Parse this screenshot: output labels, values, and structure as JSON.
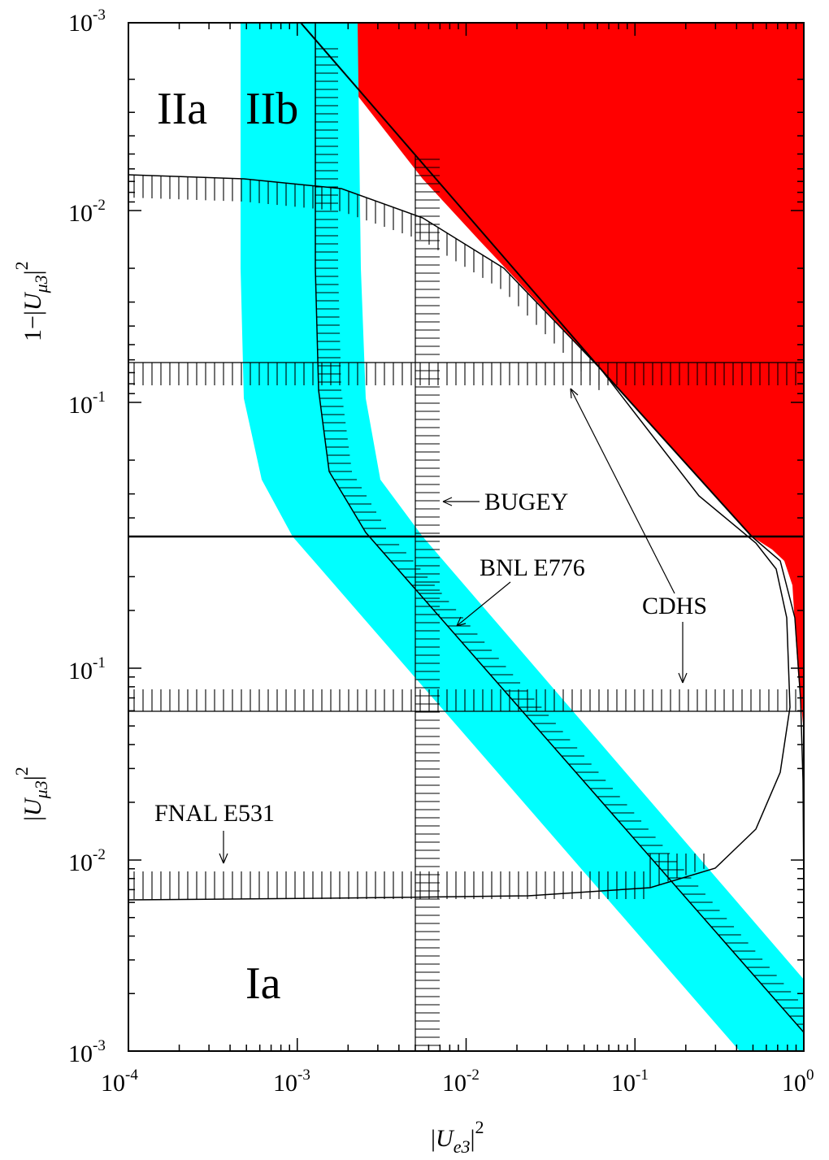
{
  "chart_data": {
    "type": "line",
    "xlabel": "|U_e3|^2",
    "x_scale": "log",
    "xlim": [
      0.0001,
      1
    ],
    "x_ticks": [
      {
        "value": 0.0001,
        "base": "10",
        "exp": "-4"
      },
      {
        "value": 0.001,
        "base": "10",
        "exp": "-3"
      },
      {
        "value": 0.01,
        "base": "10",
        "exp": "-2"
      },
      {
        "value": 0.1,
        "base": "10",
        "exp": "-1"
      },
      {
        "value": 1,
        "base": "10",
        "exp": "0"
      }
    ],
    "y_panels": [
      {
        "name": "upper",
        "ylabel": "1−|U_μ3|^2",
        "y_scale": "log",
        "ylim": [
          0.001,
          0.3
        ],
        "direction": "decreasing upward",
        "y_ticks": [
          {
            "value": 0.001,
            "base": "10",
            "exp": "-3"
          },
          {
            "value": 0.01,
            "base": "10",
            "exp": "-2"
          },
          {
            "value": 0.1,
            "base": "10",
            "exp": "-1"
          }
        ]
      },
      {
        "name": "lower",
        "ylabel": "|U_μ3|^2",
        "y_scale": "log",
        "ylim": [
          0.001,
          0.3
        ],
        "y_ticks": [
          {
            "value": 0.001,
            "base": "10",
            "exp": "-3"
          },
          {
            "value": 0.01,
            "base": "10",
            "exp": "-2"
          },
          {
            "value": 0.1,
            "base": "10",
            "exp": "-1"
          }
        ]
      }
    ],
    "regions": [
      {
        "label": "IIa",
        "color": "#ffffff"
      },
      {
        "label": "IIb",
        "color": "#00ffff"
      },
      {
        "label": "Ia",
        "color": "#ffffff"
      }
    ],
    "excluded_region_color": "#ff0000",
    "band_color": "#00ffff",
    "limits": [
      {
        "name": "BUGEY",
        "type": "vertical",
        "x": 0.005
      },
      {
        "name": "CDHS",
        "type": "horizontal-pair",
        "upper_panel_1_minus_Umu3sq": 0.16,
        "lower_panel_Umu3sq": 0.08
      },
      {
        "name": "FNAL E531",
        "type": "curve",
        "Umu3sq_at_small_Ue3": 0.0065
      },
      {
        "name": "BNL E776",
        "type": "diagonal",
        "note": "|Ue3|^2 * |Umu3|^2 bound"
      }
    ],
    "grid": false
  }
}
